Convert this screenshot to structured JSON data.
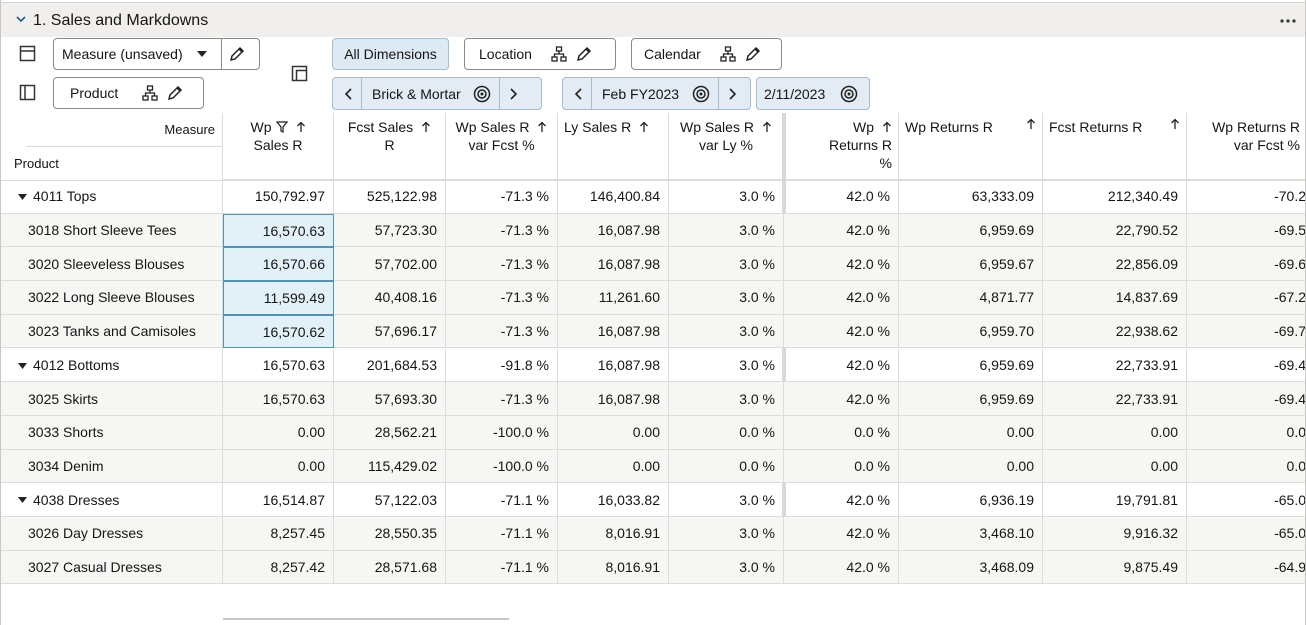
{
  "header": {
    "title": "1. Sales and Markdowns"
  },
  "toolbar": {
    "measure": "Measure (unsaved)",
    "product": "Product",
    "all_dimensions": "All Dimensions",
    "location": "Location",
    "calendar": "Calendar",
    "location_value": "Brick & Mortar",
    "calendar_value": "Feb FY2023",
    "date": "2/11/2023"
  },
  "table": {
    "corner": {
      "measure": "Measure",
      "product": "Product"
    },
    "columns": [
      [
        "Wp",
        "Sales R"
      ],
      [
        "Fcst Sales",
        "R"
      ],
      [
        "Wp Sales R",
        "var Fcst %"
      ],
      [
        "Ly Sales R"
      ],
      [
        "Wp Sales R",
        "var Ly %"
      ],
      [
        "Wp",
        "Returns R",
        "%"
      ],
      [
        "Wp Returns R"
      ],
      [
        "Fcst Returns R"
      ],
      [
        "Wp Returns R",
        "var Fcst %"
      ]
    ],
    "groups": [
      {
        "label": "4011 Tops",
        "cells": [
          "150,792.97",
          "525,122.98",
          "-71.3 %",
          "146,400.84",
          "3.0 %",
          "42.0 %",
          "63,333.09",
          "212,340.49",
          "-70.2"
        ],
        "children": [
          {
            "label": "3018 Short Sleeve Tees",
            "cells": [
              "16,570.63",
              "57,723.30",
              "-71.3 %",
              "16,087.98",
              "3.0 %",
              "42.0 %",
              "6,959.69",
              "22,790.52",
              "-69.5"
            ]
          },
          {
            "label": "3020 Sleeveless Blouses",
            "cells": [
              "16,570.66",
              "57,702.00",
              "-71.3 %",
              "16,087.98",
              "3.0 %",
              "42.0 %",
              "6,959.67",
              "22,856.09",
              "-69.6"
            ]
          },
          {
            "label": "3022 Long Sleeve Blouses",
            "cells": [
              "11,599.49",
              "40,408.16",
              "-71.3 %",
              "11,261.60",
              "3.0 %",
              "42.0 %",
              "4,871.77",
              "14,837.69",
              "-67.2"
            ]
          },
          {
            "label": "3023 Tanks and Camisoles",
            "cells": [
              "16,570.62",
              "57,696.17",
              "-71.3 %",
              "16,087.98",
              "3.0 %",
              "42.0 %",
              "6,959.70",
              "22,938.62",
              "-69.7"
            ]
          }
        ]
      },
      {
        "label": "4012 Bottoms",
        "cells": [
          "16,570.63",
          "201,684.53",
          "-91.8 %",
          "16,087.98",
          "3.0 %",
          "42.0 %",
          "6,959.69",
          "22,733.91",
          "-69.4"
        ],
        "children": [
          {
            "label": "3025 Skirts",
            "cells": [
              "16,570.63",
              "57,693.30",
              "-71.3 %",
              "16,087.98",
              "3.0 %",
              "42.0 %",
              "6,959.69",
              "22,733.91",
              "-69.4"
            ]
          },
          {
            "label": "3033 Shorts",
            "cells": [
              "0.00",
              "28,562.21",
              "-100.0 %",
              "0.00",
              "0.0 %",
              "0.0 %",
              "0.00",
              "0.00",
              "0.0"
            ]
          },
          {
            "label": "3034 Denim",
            "cells": [
              "0.00",
              "115,429.02",
              "-100.0 %",
              "0.00",
              "0.0 %",
              "0.0 %",
              "0.00",
              "0.00",
              "0.0"
            ]
          }
        ]
      },
      {
        "label": "4038 Dresses",
        "cells": [
          "16,514.87",
          "57,122.03",
          "-71.1 %",
          "16,033.82",
          "3.0 %",
          "42.0 %",
          "6,936.19",
          "19,791.81",
          "-65.0"
        ],
        "children": [
          {
            "label": "3026 Day Dresses",
            "cells": [
              "8,257.45",
              "28,550.35",
              "-71.1 %",
              "8,016.91",
              "3.0 %",
              "42.0 %",
              "3,468.10",
              "9,916.32",
              "-65.0"
            ]
          },
          {
            "label": "3027 Casual Dresses",
            "cells": [
              "8,257.42",
              "28,571.68",
              "-71.1 %",
              "8,016.91",
              "3.0 %",
              "42.0 %",
              "3,468.09",
              "9,875.49",
              "-64.9"
            ]
          }
        ]
      }
    ]
  }
}
